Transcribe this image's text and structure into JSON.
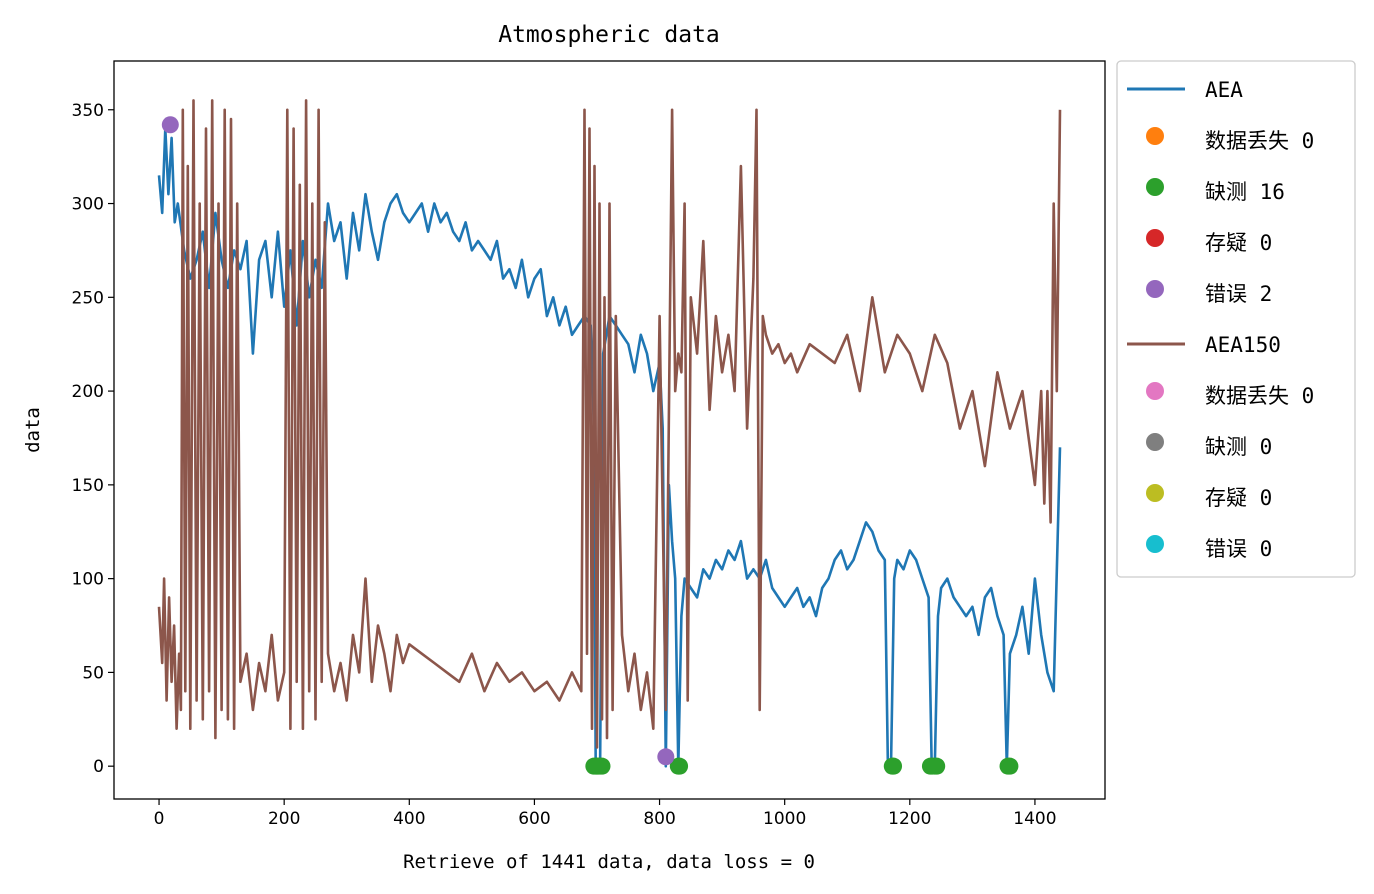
{
  "chart_data": {
    "type": "line",
    "title": "Atmospheric data",
    "xlabel": "Retrieve of 1441 data, data loss = 0",
    "ylabel": "data",
    "xlim": [
      -72,
      1512
    ],
    "ylim": [
      -17.5,
      376
    ],
    "xticks": [
      0,
      200,
      400,
      600,
      800,
      1000,
      1200,
      1400
    ],
    "yticks": [
      0,
      50,
      100,
      150,
      200,
      250,
      300,
      350
    ],
    "grid": false,
    "legend_position": "outside-right",
    "series": [
      {
        "name": "AEA",
        "kind": "line",
        "color": "#1f77b4",
        "x": [
          0,
          5,
          10,
          15,
          20,
          25,
          30,
          40,
          50,
          60,
          70,
          80,
          90,
          100,
          110,
          120,
          130,
          140,
          150,
          160,
          170,
          180,
          190,
          200,
          210,
          220,
          230,
          240,
          250,
          260,
          270,
          280,
          290,
          300,
          310,
          320,
          330,
          340,
          350,
          360,
          370,
          380,
          390,
          400,
          410,
          420,
          430,
          440,
          450,
          460,
          470,
          480,
          490,
          500,
          510,
          520,
          530,
          540,
          550,
          560,
          570,
          580,
          590,
          600,
          610,
          620,
          630,
          640,
          650,
          660,
          670,
          680,
          690,
          695,
          698,
          700,
          705,
          710,
          720,
          730,
          740,
          750,
          760,
          770,
          780,
          790,
          800,
          805,
          810,
          815,
          820,
          825,
          830,
          835,
          840,
          850,
          860,
          870,
          880,
          890,
          900,
          910,
          920,
          930,
          940,
          950,
          960,
          970,
          980,
          990,
          1000,
          1010,
          1020,
          1030,
          1040,
          1050,
          1060,
          1070,
          1080,
          1090,
          1100,
          1110,
          1120,
          1130,
          1140,
          1150,
          1160,
          1165,
          1170,
          1175,
          1180,
          1190,
          1200,
          1210,
          1220,
          1230,
          1235,
          1240,
          1245,
          1250,
          1260,
          1270,
          1280,
          1290,
          1300,
          1310,
          1320,
          1330,
          1340,
          1350,
          1355,
          1360,
          1370,
          1380,
          1390,
          1400,
          1410,
          1420,
          1430,
          1440
        ],
        "values": [
          315,
          295,
          340,
          305,
          335,
          290,
          300,
          275,
          260,
          270,
          285,
          255,
          295,
          270,
          255,
          275,
          265,
          280,
          220,
          270,
          280,
          250,
          285,
          245,
          275,
          235,
          280,
          250,
          270,
          255,
          300,
          280,
          290,
          260,
          295,
          275,
          305,
          285,
          270,
          290,
          300,
          305,
          295,
          290,
          295,
          300,
          285,
          300,
          290,
          295,
          285,
          280,
          290,
          275,
          280,
          275,
          270,
          280,
          260,
          265,
          255,
          270,
          250,
          260,
          265,
          240,
          250,
          235,
          245,
          230,
          235,
          240,
          235,
          180,
          0,
          0,
          0,
          220,
          240,
          235,
          230,
          225,
          210,
          230,
          220,
          200,
          215,
          180,
          0,
          150,
          120,
          100,
          0,
          80,
          100,
          95,
          90,
          105,
          100,
          110,
          105,
          115,
          110,
          120,
          100,
          105,
          100,
          110,
          95,
          90,
          85,
          90,
          95,
          85,
          90,
          80,
          95,
          100,
          110,
          115,
          105,
          110,
          120,
          130,
          125,
          115,
          110,
          0,
          0,
          100,
          110,
          105,
          115,
          110,
          100,
          90,
          0,
          0,
          80,
          95,
          100,
          90,
          85,
          80,
          85,
          70,
          90,
          95,
          80,
          70,
          0,
          60,
          70,
          85,
          60,
          100,
          70,
          50,
          40,
          170
        ]
      },
      {
        "name": "数据丢失 0",
        "kind": "marker",
        "color": "#ff7f0e",
        "x": [],
        "values": []
      },
      {
        "name": "缺测 16",
        "kind": "marker",
        "color": "#2ca02c",
        "x": [
          695,
          698,
          700,
          702,
          705,
          708,
          830,
          832,
          1172,
          1174,
          1233,
          1236,
          1240,
          1243,
          1357,
          1360
        ],
        "values": [
          0,
          0,
          0,
          0,
          0,
          0,
          0,
          0,
          0,
          0,
          0,
          0,
          0,
          0,
          0,
          0
        ]
      },
      {
        "name": "存疑 0",
        "kind": "marker",
        "color": "#d62728",
        "x": [],
        "values": []
      },
      {
        "name": "错误 2",
        "kind": "marker",
        "color": "#9467bd",
        "x": [
          18,
          810
        ],
        "values": [
          342,
          5
        ]
      },
      {
        "name": "AEA150",
        "kind": "line",
        "color": "#8c564b",
        "x": [
          0,
          5,
          8,
          12,
          16,
          20,
          24,
          28,
          32,
          35,
          38,
          42,
          46,
          50,
          55,
          60,
          65,
          70,
          75,
          80,
          85,
          90,
          95,
          100,
          105,
          110,
          115,
          120,
          125,
          130,
          140,
          150,
          160,
          170,
          180,
          190,
          200,
          205,
          210,
          215,
          220,
          225,
          230,
          235,
          240,
          245,
          250,
          255,
          260,
          265,
          270,
          280,
          290,
          300,
          310,
          320,
          330,
          340,
          350,
          360,
          370,
          380,
          390,
          400,
          420,
          440,
          460,
          480,
          500,
          520,
          540,
          560,
          580,
          600,
          620,
          640,
          660,
          675,
          680,
          684,
          688,
          692,
          696,
          700,
          704,
          708,
          712,
          716,
          720,
          725,
          730,
          740,
          750,
          760,
          770,
          780,
          790,
          800,
          810,
          820,
          825,
          830,
          835,
          840,
          845,
          850,
          860,
          870,
          880,
          890,
          900,
          910,
          920,
          930,
          940,
          950,
          955,
          960,
          965,
          970,
          980,
          990,
          1000,
          1010,
          1020,
          1040,
          1060,
          1080,
          1100,
          1120,
          1140,
          1160,
          1180,
          1200,
          1220,
          1240,
          1260,
          1280,
          1300,
          1320,
          1340,
          1360,
          1380,
          1400,
          1410,
          1415,
          1420,
          1425,
          1430,
          1435,
          1440
        ],
        "values": [
          85,
          55,
          100,
          35,
          90,
          45,
          75,
          20,
          60,
          30,
          350,
          40,
          320,
          20,
          355,
          35,
          300,
          25,
          340,
          40,
          355,
          15,
          300,
          30,
          350,
          25,
          345,
          20,
          300,
          45,
          60,
          30,
          55,
          40,
          70,
          35,
          50,
          350,
          20,
          340,
          45,
          310,
          20,
          355,
          40,
          300,
          25,
          350,
          45,
          290,
          60,
          40,
          55,
          35,
          70,
          50,
          100,
          45,
          75,
          60,
          40,
          70,
          55,
          65,
          60,
          55,
          50,
          45,
          60,
          40,
          55,
          45,
          50,
          40,
          45,
          35,
          50,
          40,
          350,
          60,
          340,
          20,
          320,
          10,
          300,
          25,
          250,
          15,
          300,
          30,
          240,
          70,
          40,
          60,
          30,
          50,
          20,
          240,
          30,
          350,
          200,
          220,
          210,
          300,
          35,
          250,
          220,
          280,
          190,
          240,
          210,
          230,
          200,
          320,
          180,
          260,
          350,
          30,
          240,
          230,
          220,
          225,
          215,
          220,
          210,
          225,
          220,
          215,
          230,
          200,
          250,
          210,
          230,
          220,
          200,
          230,
          215,
          180,
          200,
          160,
          210,
          180,
          200,
          150,
          200,
          140,
          200,
          130,
          300,
          200,
          350
        ]
      },
      {
        "name": "数据丢失 0",
        "kind": "marker",
        "color": "#e377c2",
        "x": [],
        "values": []
      },
      {
        "name": "缺测 0",
        "kind": "marker",
        "color": "#7f7f7f",
        "x": [],
        "values": []
      },
      {
        "name": "存疑 0",
        "kind": "marker",
        "color": "#bcbd22",
        "x": [],
        "values": []
      },
      {
        "name": "错误 0",
        "kind": "marker",
        "color": "#17becf",
        "x": [],
        "values": []
      }
    ]
  }
}
